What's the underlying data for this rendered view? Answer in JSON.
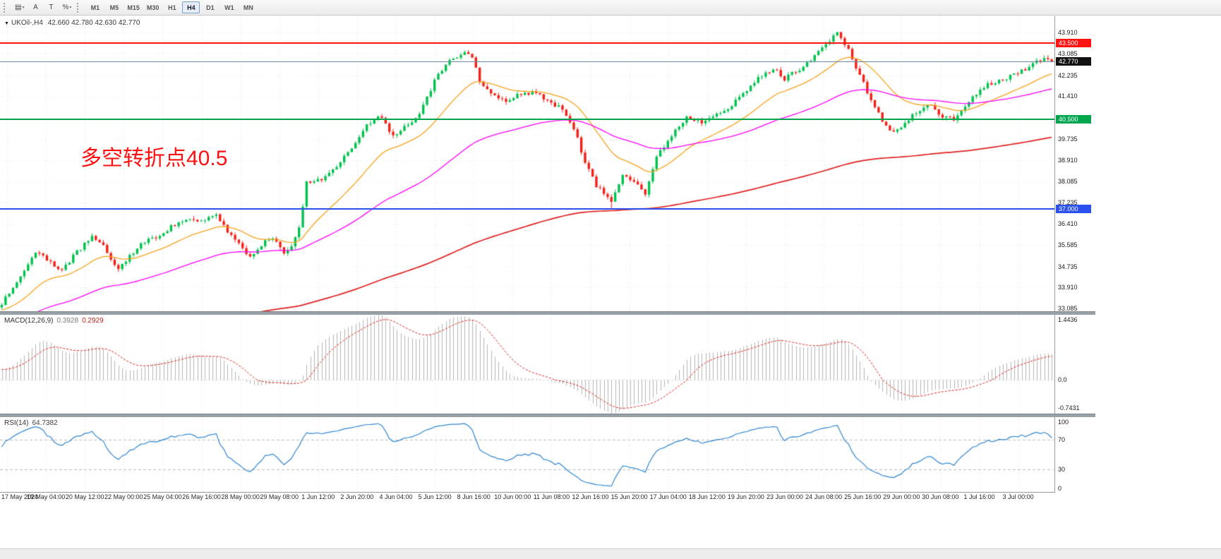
{
  "toolbar": {
    "left_buttons": [
      {
        "name": "chart-grid-button",
        "glyph": "▤",
        "caret": true
      },
      {
        "name": "cursor-button",
        "glyph": "A",
        "caret": false
      },
      {
        "name": "text-tool-button",
        "glyph": "T",
        "caret": false
      },
      {
        "name": "zoom-button",
        "glyph": "%",
        "caret": true
      }
    ],
    "timeframes": [
      {
        "label": "M1",
        "active": false
      },
      {
        "label": "M5",
        "active": false
      },
      {
        "label": "M15",
        "active": false
      },
      {
        "label": "M30",
        "active": false
      },
      {
        "label": "H1",
        "active": false
      },
      {
        "label": "H4",
        "active": true
      },
      {
        "label": "D1",
        "active": false
      },
      {
        "label": "W1",
        "active": false
      },
      {
        "label": "MN",
        "active": false
      }
    ]
  },
  "chart": {
    "dropdown_icon": "▼",
    "symbol": "UKOil-,H4",
    "ohlc_text": "42.660 42.780 42.630 42.770",
    "annotation": "多空转折点40.5",
    "levels": [
      {
        "value": 43.5,
        "label": "43.500",
        "line_color": "#ff1414",
        "badge_color": "#ff1414",
        "thickness": 2
      },
      {
        "value": 42.77,
        "label": "42.770",
        "line_color": "#6b8ba4",
        "badge_color": "#111111",
        "thickness": 1
      },
      {
        "value": 40.5,
        "label": "40.500",
        "line_color": "#00a64e",
        "badge_color": "#00a64e",
        "thickness": 2
      },
      {
        "value": 37.0,
        "label": "37.000",
        "line_color": "#2b50f0",
        "badge_color": "#2b50f0",
        "thickness": 2
      }
    ]
  },
  "macd_panel": {
    "name": "MACD(12,26,9)",
    "value_main": "0.3928",
    "value_signal": "0.2929",
    "ticks": [
      {
        "label": "1.4436",
        "value": 1.4436
      },
      {
        "label": "0.0",
        "value": 0.0
      },
      {
        "label": "-0.7431",
        "value": -0.7431
      }
    ]
  },
  "rsi_panel": {
    "name": "RSI(14)",
    "value": "64.7382",
    "ticks": [
      {
        "label": "100",
        "value": 100
      },
      {
        "label": "70",
        "value": 70
      },
      {
        "label": "30",
        "value": 30
      },
      {
        "label": "0",
        "value": 0
      }
    ]
  },
  "chart_data": {
    "type": "candlestick",
    "symbol": "UKOil-",
    "timeframe": "H4",
    "candles": 280,
    "y_range": {
      "min": 32.98,
      "max": 44.55
    },
    "y_ticks": [
      "43.910",
      "43.085",
      "42.235",
      "41.410",
      "39.735",
      "38.910",
      "38.085",
      "37.235",
      "36.410",
      "35.585",
      "34.735",
      "33.910",
      "33.085"
    ],
    "time_labels": [
      "17 May 2020",
      "19 May 04:00",
      "20 May 12:00",
      "22 May 00:00",
      "25 May 04:00",
      "26 May 16:00",
      "28 May 00:00",
      "29 May 08:00",
      "1 Jun 12:00",
      "2 Jun 20:00",
      "4 Jun 04:00",
      "5 Jun 12:00",
      "8 Jun 16:00",
      "10 Jun 00:00",
      "11 Jun 08:00",
      "12 Jun 16:00",
      "15 Jun 20:00",
      "17 Jun 04:00",
      "18 Jun 12:00",
      "19 Jun 20:00",
      "23 Jun 00:00",
      "24 Jun 08:00",
      "25 Jun 16:00",
      "29 Jun 00:00",
      "30 Jun 08:00",
      "1 Jul 16:00",
      "3 Jul 00:00"
    ],
    "price_path": [
      [
        0,
        33.3
      ],
      [
        3,
        33.95
      ],
      [
        5,
        34.3
      ],
      [
        9,
        35.3
      ],
      [
        12,
        35.0
      ],
      [
        16,
        34.6
      ],
      [
        20,
        35.3
      ],
      [
        24,
        35.9
      ],
      [
        27,
        35.5
      ],
      [
        31,
        34.6
      ],
      [
        33,
        35.0
      ],
      [
        37,
        35.6
      ],
      [
        41,
        35.9
      ],
      [
        44,
        36.2
      ],
      [
        49,
        36.6
      ],
      [
        53,
        36.45
      ],
      [
        57,
        36.8
      ],
      [
        59,
        36.3
      ],
      [
        62,
        35.8
      ],
      [
        66,
        35.1
      ],
      [
        69,
        35.6
      ],
      [
        72,
        35.9
      ],
      [
        75,
        35.3
      ],
      [
        77,
        35.6
      ],
      [
        79,
        36.2
      ],
      [
        81,
        38.0
      ],
      [
        85,
        38.2
      ],
      [
        89,
        38.6
      ],
      [
        92,
        39.2
      ],
      [
        96,
        40.1
      ],
      [
        100,
        40.7
      ],
      [
        104,
        39.9
      ],
      [
        108,
        40.3
      ],
      [
        111,
        40.8
      ],
      [
        115,
        42.0
      ],
      [
        119,
        42.9
      ],
      [
        123,
        43.1
      ],
      [
        125,
        42.95
      ],
      [
        127,
        42.0
      ],
      [
        130,
        41.5
      ],
      [
        134,
        41.2
      ],
      [
        138,
        41.5
      ],
      [
        142,
        41.6
      ],
      [
        145,
        41.2
      ],
      [
        149,
        40.9
      ],
      [
        152,
        40.2
      ],
      [
        155,
        38.8
      ],
      [
        158,
        37.9
      ],
      [
        162,
        37.3
      ],
      [
        165,
        38.4
      ],
      [
        168,
        38.1
      ],
      [
        171,
        37.6
      ],
      [
        174,
        39.0
      ],
      [
        178,
        39.9
      ],
      [
        182,
        40.6
      ],
      [
        186,
        40.4
      ],
      [
        190,
        40.8
      ],
      [
        193,
        40.9
      ],
      [
        197,
        41.5
      ],
      [
        201,
        42.1
      ],
      [
        205,
        42.5
      ],
      [
        208,
        42.1
      ],
      [
        212,
        42.5
      ],
      [
        216,
        43.0
      ],
      [
        220,
        43.6
      ],
      [
        222,
        43.85
      ],
      [
        225,
        43.3
      ],
      [
        227,
        42.5
      ],
      [
        231,
        41.3
      ],
      [
        234,
        40.4
      ],
      [
        237,
        40.0
      ],
      [
        240,
        40.3
      ],
      [
        243,
        40.8
      ],
      [
        247,
        41.1
      ],
      [
        250,
        40.6
      ],
      [
        253,
        40.5
      ],
      [
        257,
        41.2
      ],
      [
        260,
        41.7
      ],
      [
        264,
        42.0
      ],
      [
        268,
        42.2
      ],
      [
        272,
        42.5
      ],
      [
        275,
        42.9
      ],
      [
        279,
        42.77
      ]
    ],
    "prehistory": {
      "bars": 260,
      "start_price": 27.0
    },
    "seed": 11,
    "noise": 0.085,
    "wick": 0.12,
    "last_close": 42.77,
    "high_cap_index": 222,
    "high_cap": 43.91,
    "low_cap_index": 162,
    "low_cap": 37.0,
    "moving_averages": [
      {
        "name": "ma-fast",
        "period": 21,
        "color": "#f9a11b",
        "width": 1.3
      },
      {
        "name": "ma-mid",
        "period": 68,
        "color": "#ff00ff",
        "width": 1.3
      },
      {
        "name": "ma-slow",
        "period": 230,
        "color": "#e02020",
        "width": 1.7
      }
    ],
    "macd": {
      "fast": 12,
      "slow": 26,
      "signal": 9,
      "range": {
        "min": -0.7431,
        "max": 1.4436
      },
      "histogram_color": "#b4b4b4",
      "signal_color": "#e02020"
    },
    "rsi": {
      "period": 14,
      "range": [
        0,
        100
      ],
      "levels": [
        70,
        30
      ],
      "color": "#2f86d2",
      "level_color": "#bbbbbb"
    },
    "colors": {
      "up": "#00c24d",
      "down": "#f32017",
      "grid": "#dddddd"
    }
  }
}
